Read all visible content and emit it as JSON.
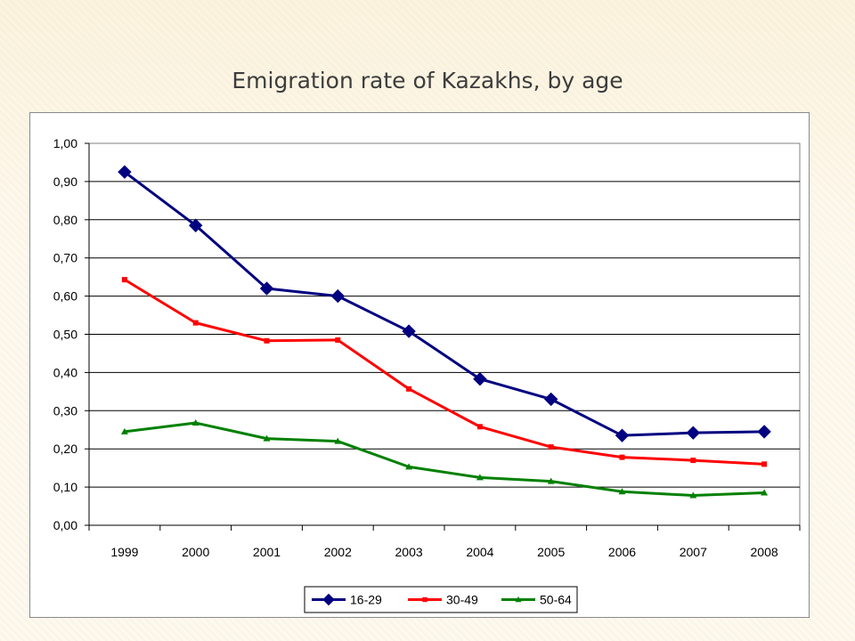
{
  "slide": {
    "title": "Emigration rate of Kazakhs, by age"
  },
  "chart_data": {
    "type": "line",
    "title": "Emigration rate of Kazakhs, by age",
    "xlabel": "",
    "ylabel": "",
    "categories": [
      "1999",
      "2000",
      "2001",
      "2002",
      "2003",
      "2004",
      "2005",
      "2006",
      "2007",
      "2008"
    ],
    "ylim": [
      0,
      1.0
    ],
    "ytick_step": 0.1,
    "ytick_labels": [
      "0,00",
      "0,10",
      "0,20",
      "0,30",
      "0,40",
      "0,50",
      "0,60",
      "0,70",
      "0,80",
      "0,90",
      "1,00"
    ],
    "grid": "horizontal",
    "legend_position": "bottom",
    "series": [
      {
        "name": "16-29",
        "color": "#000080",
        "marker": "diamond",
        "values": [
          0.925,
          0.785,
          0.62,
          0.6,
          0.508,
          0.383,
          0.33,
          0.235,
          0.242,
          0.245
        ]
      },
      {
        "name": "30-49",
        "color": "#ff0000",
        "marker": "square",
        "values": [
          0.643,
          0.53,
          0.483,
          0.485,
          0.357,
          0.258,
          0.205,
          0.178,
          0.17,
          0.16
        ]
      },
      {
        "name": "50-64",
        "color": "#008000",
        "marker": "triangle",
        "values": [
          0.245,
          0.268,
          0.227,
          0.22,
          0.153,
          0.125,
          0.115,
          0.088,
          0.078,
          0.085
        ]
      }
    ]
  }
}
